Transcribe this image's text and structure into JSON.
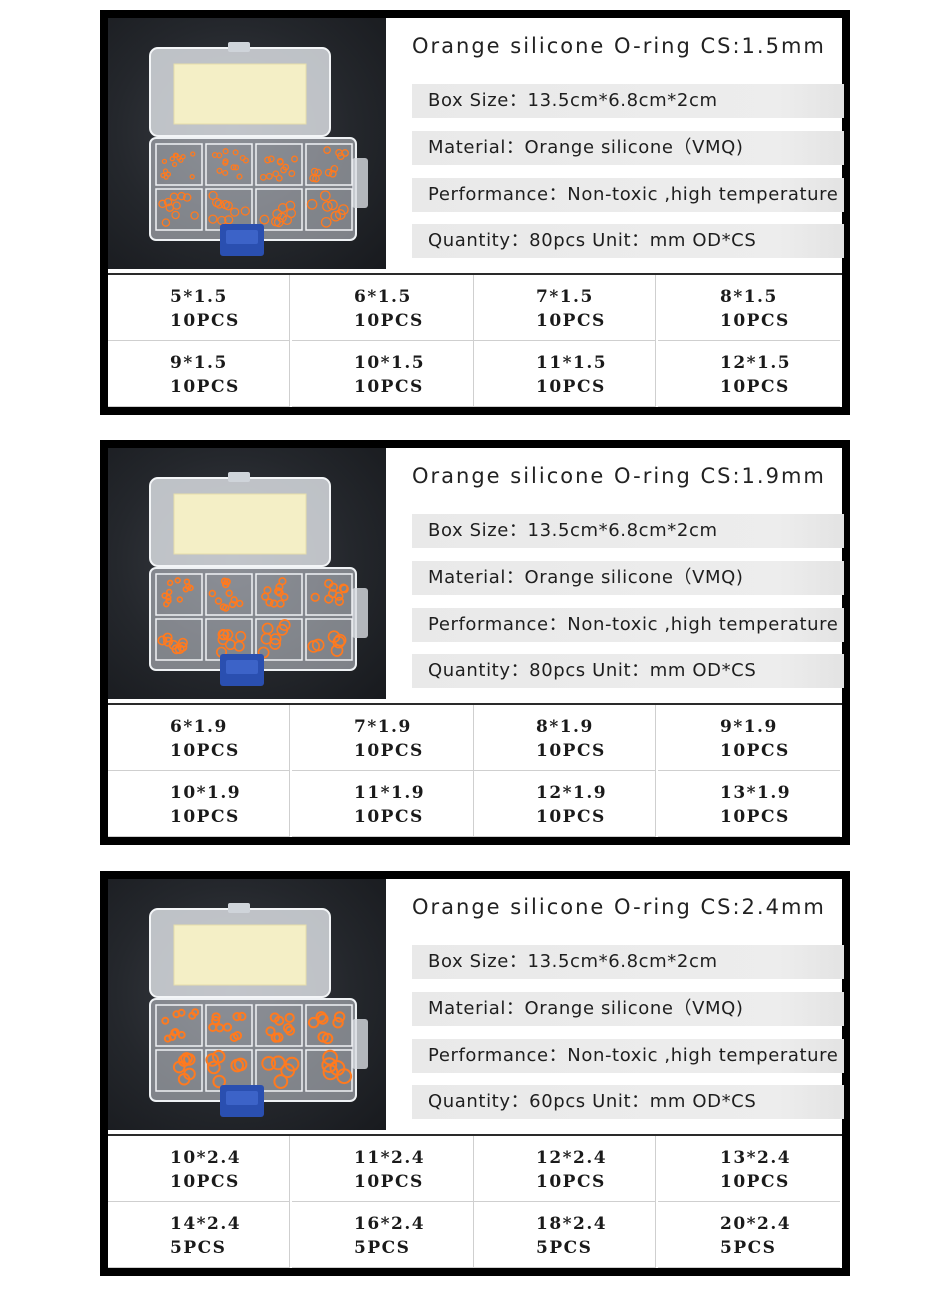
{
  "panels": [
    {
      "title": "Orange silicone O-ring  CS:1.5mm",
      "specs": [
        "Box Size：13.5cm*6.8cm*2cm",
        "Material：Orange silicone（VMQ)",
        "Performance：Non-toxic ,high temperature",
        "Quantity：80pcs    Unit：mm    OD*CS"
      ],
      "items": [
        {
          "size": "5*1.5",
          "qty": "10PCS"
        },
        {
          "size": "6*1.5",
          "qty": "10PCS"
        },
        {
          "size": "7*1.5",
          "qty": "10PCS"
        },
        {
          "size": "8*1.5",
          "qty": "10PCS"
        },
        {
          "size": "9*1.5",
          "qty": "10PCS"
        },
        {
          "size": "10*1.5",
          "qty": "10PCS"
        },
        {
          "size": "11*1.5",
          "qty": "10PCS"
        },
        {
          "size": "12*1.5",
          "qty": "10PCS"
        }
      ]
    },
    {
      "title": "Orange silicone O-ring  CS:1.9mm",
      "specs": [
        "Box Size：13.5cm*6.8cm*2cm",
        "Material：Orange silicone（VMQ)",
        "Performance：Non-toxic ,high temperature",
        "Quantity：80pcs    Unit：mm    OD*CS"
      ],
      "items": [
        {
          "size": "6*1.9",
          "qty": "10PCS"
        },
        {
          "size": "7*1.9",
          "qty": "10PCS"
        },
        {
          "size": "8*1.9",
          "qty": "10PCS"
        },
        {
          "size": "9*1.9",
          "qty": "10PCS"
        },
        {
          "size": "10*1.9",
          "qty": "10PCS"
        },
        {
          "size": "11*1.9",
          "qty": "10PCS"
        },
        {
          "size": "12*1.9",
          "qty": "10PCS"
        },
        {
          "size": "13*1.9",
          "qty": "10PCS"
        }
      ]
    },
    {
      "title": "Orange silicone O-ring  CS:2.4mm",
      "specs": [
        "Box Size：13.5cm*6.8cm*2cm",
        "Material：Orange silicone（VMQ)",
        "Performance：Non-toxic ,high temperature",
        "Quantity：60pcs    Unit：mm    OD*CS"
      ],
      "items": [
        {
          "size": "10*2.4",
          "qty": "10PCS"
        },
        {
          "size": "11*2.4",
          "qty": "10PCS"
        },
        {
          "size": "12*2.4",
          "qty": "10PCS"
        },
        {
          "size": "13*2.4",
          "qty": "10PCS"
        },
        {
          "size": "14*2.4",
          "qty": "5PCS"
        },
        {
          "size": "16*2.4",
          "qty": "5PCS"
        },
        {
          "size": "18*2.4",
          "qty": "5PCS"
        },
        {
          "size": "20*2.4",
          "qty": "5PCS"
        }
      ]
    }
  ],
  "colors": {
    "ring": "#ff7a1f",
    "latch": "#2a4fb0",
    "frame": "#000000"
  }
}
